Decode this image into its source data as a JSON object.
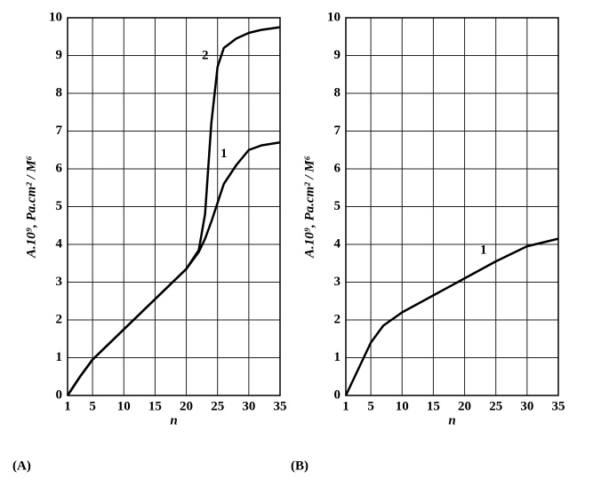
{
  "chart_data": [
    {
      "type": "line",
      "panel_label": "(A)",
      "x_label": "n",
      "y_label": "A.10⁹, Pa.cm² / M⁶",
      "x": [
        1,
        3,
        5,
        10,
        15,
        20,
        22,
        23,
        24,
        25,
        26,
        28,
        30,
        32,
        35
      ],
      "series": [
        {
          "name": "1",
          "color": "#000000",
          "values": [
            0,
            0.5,
            0.95,
            1.75,
            2.55,
            3.35,
            3.8,
            4.15,
            4.6,
            5.1,
            5.6,
            6.1,
            6.5,
            6.62,
            6.7
          ]
        },
        {
          "name": "2",
          "color": "#000000",
          "values": [
            0,
            0.5,
            0.95,
            1.75,
            2.55,
            3.35,
            3.85,
            4.8,
            7.2,
            8.7,
            9.2,
            9.45,
            9.6,
            9.68,
            9.75
          ]
        }
      ],
      "xlim": [
        1,
        35
      ],
      "xticks": [
        1,
        5,
        10,
        15,
        20,
        25,
        30,
        35
      ],
      "ylim": [
        0,
        10
      ],
      "yticks": [
        0,
        1,
        2,
        3,
        4,
        5,
        6,
        7,
        8,
        9,
        10
      ],
      "grid": true
    },
    {
      "type": "line",
      "panel_label": "(B)",
      "x_label": "n",
      "y_label": "A.10⁹, Pa.cm² / M⁶",
      "x": [
        1,
        3,
        5,
        7,
        10,
        15,
        20,
        25,
        30,
        35
      ],
      "series": [
        {
          "name": "1",
          "color": "#000000",
          "values": [
            0,
            0.7,
            1.4,
            1.85,
            2.2,
            2.65,
            3.1,
            3.55,
            3.95,
            4.15
          ]
        }
      ],
      "xlim": [
        1,
        35
      ],
      "xticks": [
        1,
        5,
        10,
        15,
        20,
        25,
        30,
        35
      ],
      "ylim": [
        0,
        10
      ],
      "yticks": [
        0,
        1,
        2,
        3,
        4,
        5,
        6,
        7,
        8,
        9,
        10
      ],
      "grid": true
    }
  ]
}
